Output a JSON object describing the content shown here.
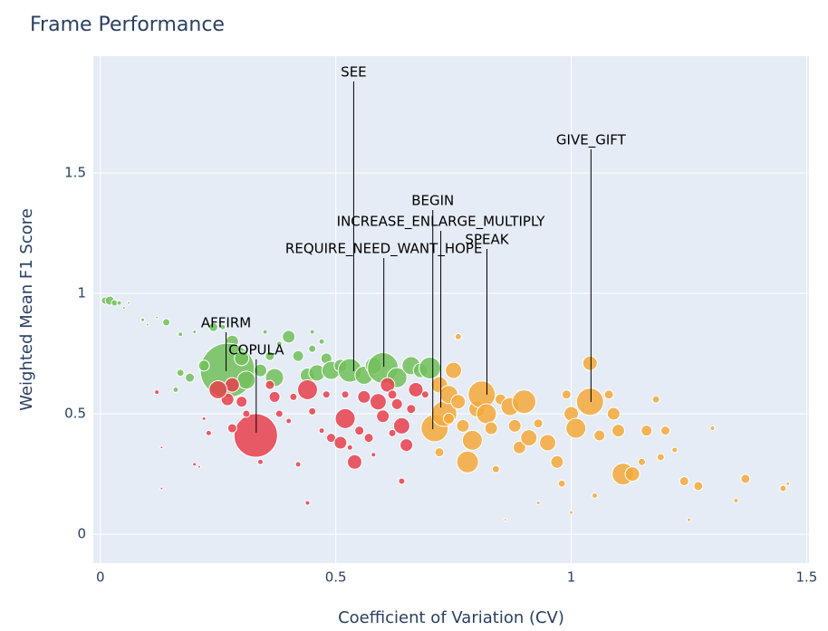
{
  "chart_data": {
    "type": "scatter",
    "title": "Frame Performance",
    "x_label": "Coefficient of Variation (CV)",
    "y_label": "Weighted Mean F1 Score",
    "xlim": [
      -0.015,
      1.505
    ],
    "ylim": [
      -0.12,
      1.985
    ],
    "xticks": [
      0,
      0.5,
      1,
      1.5
    ],
    "yticks": [
      0,
      0.5,
      1,
      1.5
    ],
    "grid": true,
    "series": [
      {
        "color": "#72c05b",
        "x": [
          0.01,
          0.02,
          0.03,
          0.04,
          0.06,
          0.09,
          0.1,
          0.14,
          0.17,
          0.2,
          0.24,
          0.26,
          0.28,
          0.27,
          0.22,
          0.19,
          0.16,
          0.17,
          0.3,
          0.31,
          0.34,
          0.36,
          0.37,
          0.4,
          0.42,
          0.45,
          0.44,
          0.46,
          0.48,
          0.49,
          0.51,
          0.53,
          0.56,
          0.58,
          0.6,
          0.63,
          0.66,
          0.68,
          0.7,
          0.47,
          0.45,
          0.38,
          0.35,
          0.12,
          0.05
        ],
        "values": [
          0.97,
          0.97,
          0.96,
          0.96,
          0.96,
          0.89,
          0.87,
          0.88,
          0.83,
          0.84,
          0.86,
          0.86,
          0.8,
          0.68,
          0.7,
          0.65,
          0.6,
          0.67,
          0.73,
          0.64,
          0.68,
          0.74,
          0.65,
          0.82,
          0.74,
          0.77,
          0.66,
          0.67,
          0.73,
          0.68,
          0.7,
          0.68,
          0.66,
          0.7,
          0.69,
          0.65,
          0.7,
          0.68,
          0.69,
          0.8,
          0.84,
          0.79,
          0.84,
          0.9,
          0.94
        ],
        "sizes": [
          8,
          10,
          7,
          5,
          3,
          4,
          3,
          8,
          5,
          4,
          10,
          6,
          14,
          60,
          12,
          10,
          6,
          8,
          16,
          20,
          14,
          10,
          20,
          14,
          12,
          8,
          16,
          18,
          12,
          20,
          14,
          26,
          20,
          18,
          34,
          22,
          20,
          16,
          24,
          6,
          5,
          6,
          5,
          3,
          3
        ]
      },
      {
        "color": "#e8404a",
        "x": [
          0.33,
          0.28,
          0.27,
          0.3,
          0.31,
          0.28,
          0.23,
          0.25,
          0.22,
          0.2,
          0.21,
          0.13,
          0.13,
          0.12,
          0.36,
          0.37,
          0.38,
          0.4,
          0.41,
          0.44,
          0.45,
          0.47,
          0.49,
          0.51,
          0.52,
          0.53,
          0.55,
          0.56,
          0.57,
          0.59,
          0.6,
          0.61,
          0.62,
          0.63,
          0.64,
          0.65,
          0.66,
          0.67,
          0.62,
          0.54,
          0.52,
          0.48,
          0.44,
          0.42,
          0.34,
          0.64,
          0.58,
          0.69
        ],
        "values": [
          0.41,
          0.62,
          0.56,
          0.55,
          0.5,
          0.44,
          0.42,
          0.6,
          0.48,
          0.29,
          0.28,
          0.36,
          0.19,
          0.59,
          0.62,
          0.57,
          0.5,
          0.47,
          0.57,
          0.6,
          0.51,
          0.43,
          0.4,
          0.38,
          0.48,
          0.36,
          0.43,
          0.57,
          0.4,
          0.55,
          0.49,
          0.62,
          0.58,
          0.54,
          0.45,
          0.37,
          0.52,
          0.6,
          0.42,
          0.3,
          0.58,
          0.58,
          0.13,
          0.29,
          0.3,
          0.22,
          0.33,
          0.58
        ],
        "sizes": [
          48,
          16,
          14,
          12,
          8,
          10,
          6,
          20,
          4,
          4,
          3,
          3,
          3,
          5,
          10,
          12,
          8,
          6,
          8,
          22,
          8,
          6,
          10,
          14,
          22,
          6,
          10,
          14,
          10,
          18,
          14,
          16,
          10,
          12,
          18,
          14,
          10,
          16,
          8,
          16,
          8,
          8,
          5,
          6,
          6,
          7,
          5,
          8
        ]
      },
      {
        "color": "#f5a93a",
        "x": [
          0.71,
          0.72,
          0.73,
          0.74,
          0.75,
          0.76,
          0.77,
          0.78,
          0.79,
          0.8,
          0.81,
          0.82,
          0.83,
          0.84,
          0.85,
          0.87,
          0.88,
          0.89,
          0.9,
          0.91,
          0.93,
          0.95,
          0.97,
          0.98,
          0.99,
          1.0,
          1.01,
          1.04,
          1.04,
          1.06,
          1.08,
          1.09,
          1.1,
          1.11,
          1.13,
          1.15,
          1.16,
          1.18,
          1.19,
          1.2,
          1.22,
          1.24,
          1.27,
          1.3,
          1.37,
          1.45,
          1.46,
          0.76,
          0.72,
          0.74,
          1.05,
          0.93,
          1.25,
          1.35,
          1.0,
          0.86
        ],
        "values": [
          0.44,
          0.62,
          0.5,
          0.58,
          0.68,
          0.55,
          0.45,
          0.3,
          0.39,
          0.52,
          0.58,
          0.5,
          0.44,
          0.27,
          0.56,
          0.53,
          0.45,
          0.36,
          0.55,
          0.4,
          0.46,
          0.38,
          0.3,
          0.21,
          0.58,
          0.5,
          0.44,
          0.55,
          0.71,
          0.41,
          0.58,
          0.5,
          0.43,
          0.25,
          0.25,
          0.3,
          0.43,
          0.56,
          0.32,
          0.43,
          0.35,
          0.22,
          0.2,
          0.44,
          0.23,
          0.19,
          0.21,
          0.82,
          0.34,
          0.48,
          0.16,
          0.13,
          0.06,
          0.14,
          0.09,
          0.06
        ],
        "sizes": [
          30,
          18,
          28,
          20,
          18,
          16,
          14,
          24,
          22,
          18,
          30,
          22,
          14,
          8,
          12,
          20,
          14,
          14,
          26,
          18,
          10,
          18,
          14,
          8,
          10,
          16,
          22,
          30,
          16,
          12,
          10,
          14,
          14,
          24,
          16,
          8,
          12,
          8,
          8,
          10,
          6,
          10,
          10,
          5,
          10,
          7,
          4,
          7,
          10,
          12,
          6,
          4,
          4,
          5,
          4,
          3
        ]
      }
    ],
    "annotations": [
      {
        "text": "SEE",
        "x": 0.538,
        "y": 0.677
      },
      {
        "text": "GIVE_GIFT",
        "x": 1.042,
        "y": 0.549
      },
      {
        "text": "BEGIN",
        "x": 0.706,
        "y": 0.436
      },
      {
        "text": "INCREASE_ENLARGE_MULTIPLY",
        "x": 0.723,
        "y": 0.526
      },
      {
        "text": "SPEAK",
        "x": 0.821,
        "y": 0.579
      },
      {
        "text": "REQUIRE_NEED_WANT_HOPE",
        "x": 0.602,
        "y": 0.695
      },
      {
        "text": "AFFIRM",
        "x": 0.267,
        "y": 0.677
      },
      {
        "text": "COPULA",
        "x": 0.331,
        "y": 0.421
      }
    ]
  }
}
